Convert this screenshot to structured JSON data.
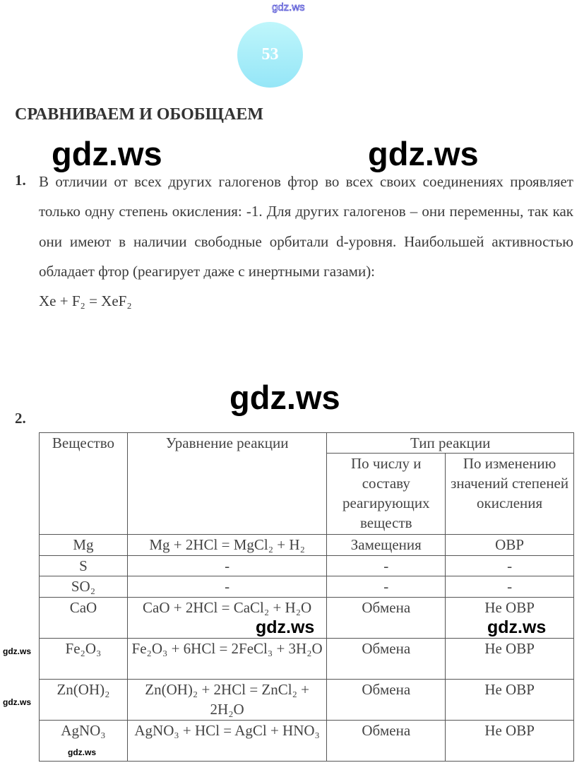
{
  "watermarks": {
    "top": "gdz.ws",
    "large": "gdz.ws",
    "medium": "gdz.ws",
    "small": "gdz.ws"
  },
  "page_number": "53",
  "section_title": "СРАВНИВАЕМ И ОБОБЩАЕМ",
  "task1": {
    "number": "1.",
    "text": "В отличии от всех других галогенов фтор во всех своих соединениях проявляет только одну степень окисления: -1. Для других галогенов – они переменны, так как они имеют в наличии свободные орбитали d-уровня. Наибольшей активностью обладает фтор (реагирует даже с инертными газами):",
    "equation": "Xe + F₂ = XeF₂"
  },
  "task2": {
    "number": "2.",
    "headers": {
      "substance": "Вещество",
      "equation": "Уравнение реакции",
      "type": "Тип реакции",
      "by_composition": "По числу и составу реагирующих веществ",
      "by_oxidation": "По изменению значений степеней окисления"
    },
    "rows": [
      {
        "substance": "Mg",
        "equation": "Mg + 2HCl = MgCl₂ + H₂",
        "composition": "Замещения",
        "oxidation": "ОВР"
      },
      {
        "substance": "S",
        "equation": "-",
        "composition": "-",
        "oxidation": "-"
      },
      {
        "substance": "SO₂",
        "equation": "-",
        "composition": "-",
        "oxidation": "-"
      },
      {
        "substance": "CaO",
        "equation": "CaO + 2HCl = CaCl₂ + H₂O",
        "composition": "Обмена",
        "oxidation": "Не ОВР"
      },
      {
        "substance": "Fe₂O₃",
        "equation": "Fe₂O₃ + 6HCl = 2FeCl₃ + 3H₂O",
        "composition": "Обмена",
        "oxidation": "Не ОВР"
      },
      {
        "substance": "Zn(OH)₂",
        "equation": "Zn(OH)₂ + 2HCl = ZnCl₂ + 2H₂O",
        "composition": "Обмена",
        "oxidation": "Не ОВР"
      },
      {
        "substance": "AgNO₃",
        "equation": "AgNO₃ + HCl = AgCl + HNO₃",
        "composition": "Обмена",
        "oxidation": "Не ОВР"
      }
    ]
  }
}
